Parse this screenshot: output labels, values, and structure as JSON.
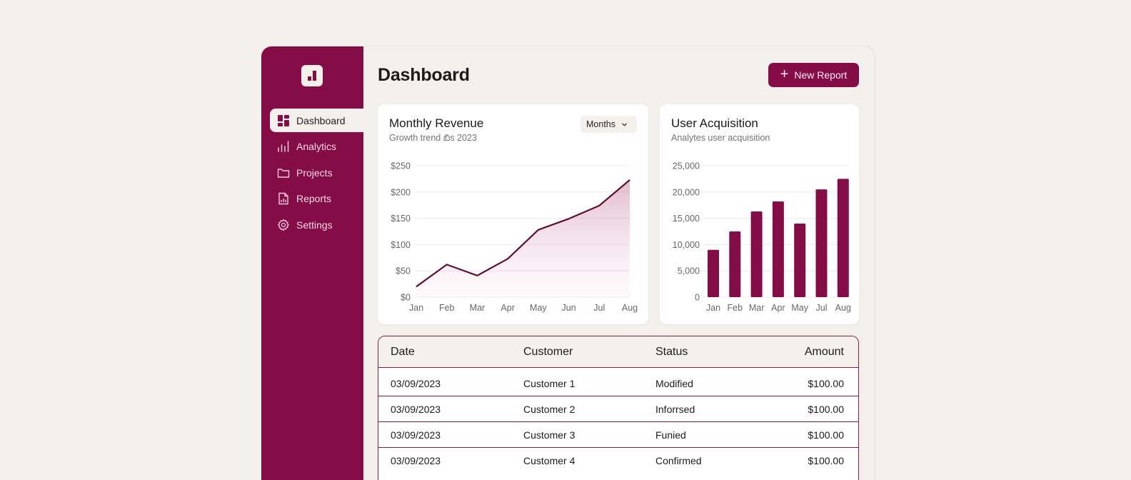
{
  "sidebar": {
    "logo": "bar-chart-logo",
    "items": [
      {
        "label": "Dashboard",
        "icon": "dashboard-grid-icon",
        "active": true
      },
      {
        "label": "Analytics",
        "icon": "analytics-bars-icon",
        "active": false
      },
      {
        "label": "Projects",
        "icon": "folder-icon",
        "active": false
      },
      {
        "label": "Reports",
        "icon": "report-file-icon",
        "active": false
      },
      {
        "label": "Settings",
        "icon": "gear-icon",
        "active": false
      }
    ]
  },
  "header": {
    "title": "Dashboard",
    "new_report_label": "New Report",
    "new_report_icon": "plus-icon"
  },
  "colors": {
    "brand": "#850d47",
    "background": "#f4f1ec",
    "card": "#ffffff",
    "line": "#5c0f33",
    "table_border": "#7d1f48"
  },
  "revenue_card": {
    "title": "Monthly Revenue",
    "subtitle": "Growth trend బిs 2023",
    "dropdown_value": "Months"
  },
  "acquisition_card": {
    "title": "User Acquisition",
    "subtitle": "Analytes user acquisition"
  },
  "chart_data": [
    {
      "type": "area",
      "title": "Monthly Revenue",
      "subtitle": "Growth trend బిs 2023",
      "categories": [
        "Jan",
        "Feb",
        "Mar",
        "Apr",
        "May",
        "Jun",
        "Jul",
        "Aug"
      ],
      "values": [
        20,
        62,
        41,
        73,
        128,
        149,
        174,
        223
      ],
      "yticks": [
        "$0",
        "$50",
        "$100",
        "$150",
        "$200",
        "$250"
      ],
      "ylim": [
        0,
        250
      ],
      "xlabel": "",
      "ylabel": "",
      "grid": true,
      "legend": null
    },
    {
      "type": "bar",
      "title": "User Acquisition",
      "subtitle": "Analytes user acquisition",
      "categories": [
        "Jan",
        "Feb",
        "Mar",
        "Apr",
        "May",
        "Jul",
        "Aug"
      ],
      "values": [
        9000,
        12500,
        16300,
        18200,
        14000,
        20500,
        22500
      ],
      "yticks": [
        "0",
        "5,000",
        "10,000",
        "15,000",
        "20,000",
        "25,000"
      ],
      "ylim": [
        0,
        25000
      ],
      "xlabel": "",
      "ylabel": "",
      "grid": true,
      "legend": null
    }
  ],
  "table": {
    "columns": [
      "Date",
      "Customer",
      "Status",
      "Amount"
    ],
    "rows": [
      {
        "date": "03/09/2023",
        "customer": "Customer 1",
        "status": "Modified",
        "amount": "$100.00"
      },
      {
        "date": "03/09/2023",
        "customer": "Customer 2",
        "status": "Inforrsed",
        "amount": "$100.00"
      },
      {
        "date": "03/09/2023",
        "customer": "Customer 3",
        "status": "Funied",
        "amount": "$100.00"
      },
      {
        "date": "03/09/2023",
        "customer": "Customer 4",
        "status": "Confirmed",
        "amount": "$100.00"
      }
    ]
  }
}
